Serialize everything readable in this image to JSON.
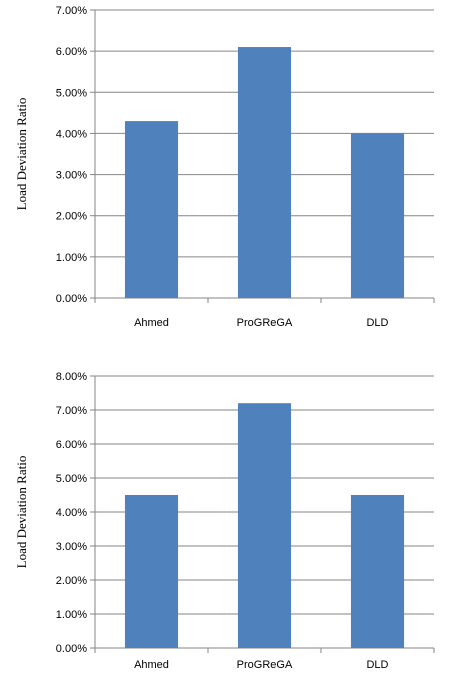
{
  "chart_data": [
    {
      "type": "bar",
      "title": "",
      "xlabel": "",
      "ylabel": "Load Deviation Ratio",
      "categories": [
        "Ahmed",
        "ProGReGA",
        "DLD"
      ],
      "values": [
        0.043,
        0.061,
        0.04
      ],
      "ylim": [
        0,
        0.07
      ],
      "yticks": [
        0,
        0.01,
        0.02,
        0.03,
        0.04,
        0.05,
        0.06,
        0.07
      ],
      "ytick_labels": [
        "0.00%",
        "1.00%",
        "2.00%",
        "3.00%",
        "4.00%",
        "5.00%",
        "6.00%",
        "7.00%"
      ],
      "grid": true,
      "legend": "none",
      "bar_color": "#4f81bd"
    },
    {
      "type": "bar",
      "title": "",
      "xlabel": "",
      "ylabel": "Load Deviation Ratio",
      "categories": [
        "Ahmed",
        "ProGReGA",
        "DLD"
      ],
      "values": [
        0.045,
        0.072,
        0.045
      ],
      "ylim": [
        0,
        0.08
      ],
      "yticks": [
        0,
        0.01,
        0.02,
        0.03,
        0.04,
        0.05,
        0.06,
        0.07,
        0.08
      ],
      "ytick_labels": [
        "0.00%",
        "1.00%",
        "2.00%",
        "3.00%",
        "4.00%",
        "5.00%",
        "6.00%",
        "7.00%",
        "8.00%"
      ],
      "grid": true,
      "legend": "none",
      "bar_color": "#4f81bd"
    }
  ]
}
